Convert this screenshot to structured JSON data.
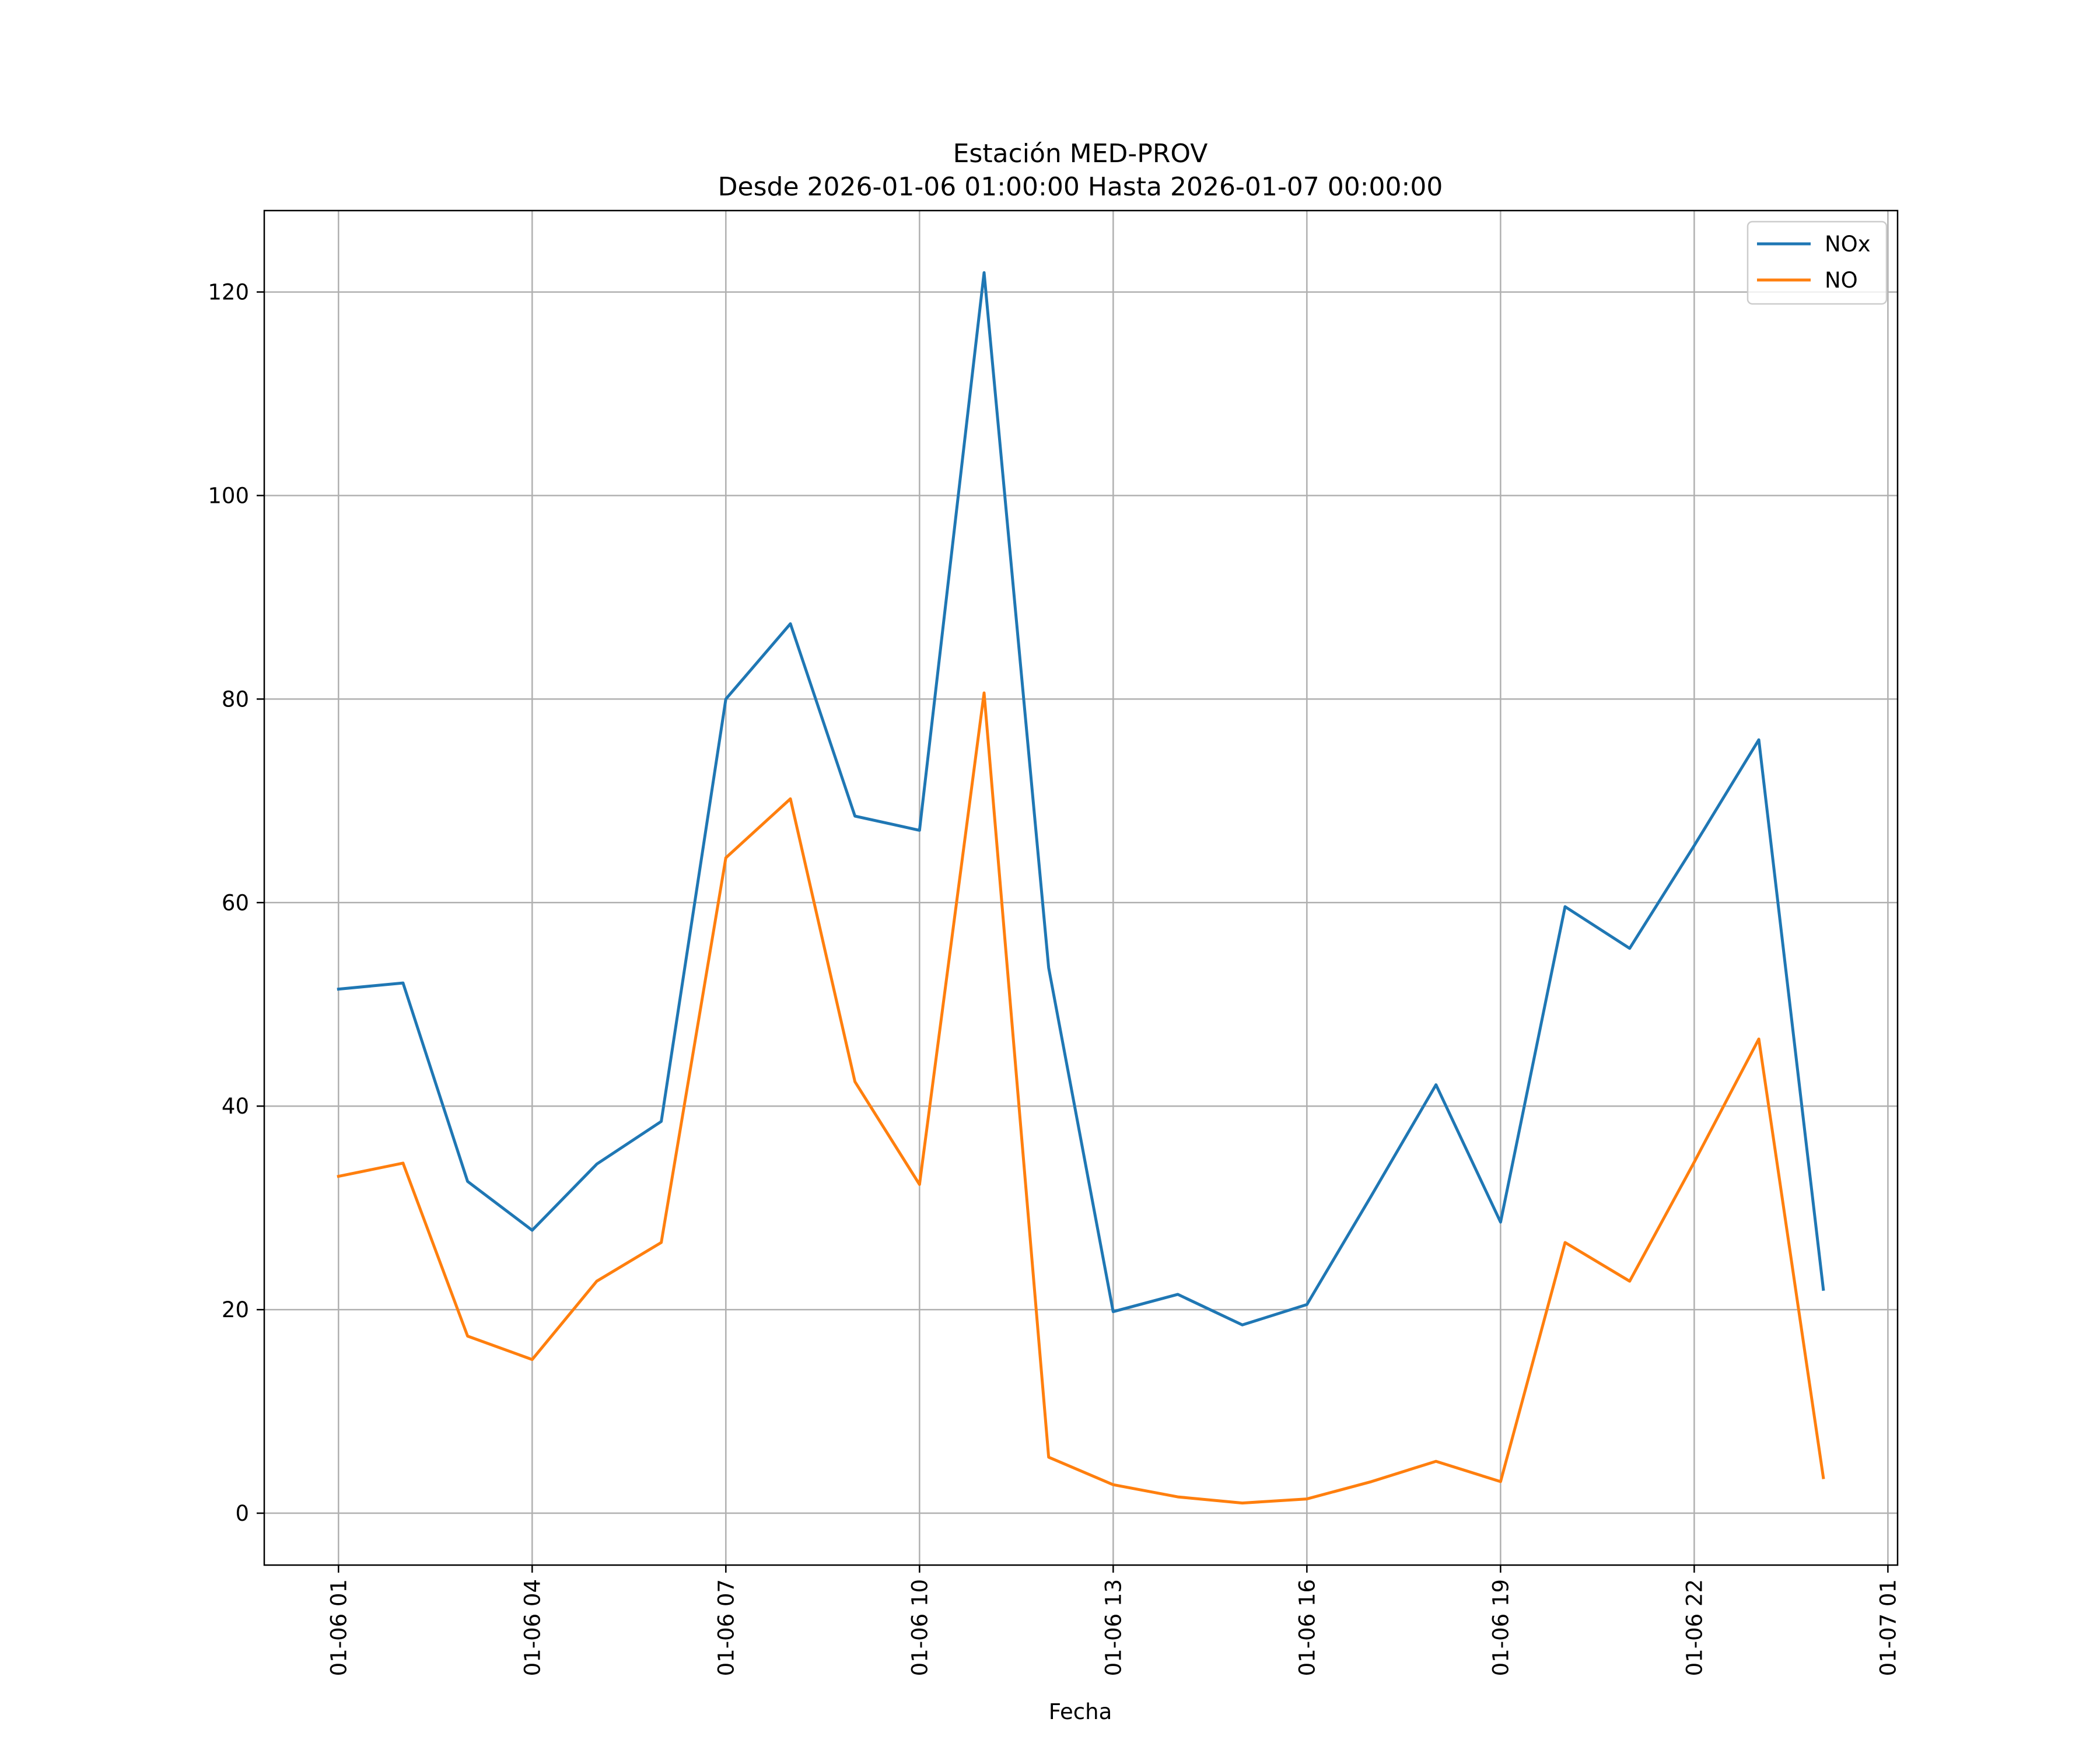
{
  "chart_data": {
    "type": "line",
    "title_line1": "Estación MED-PROV",
    "title_line2": "Desde 2026-01-06 01:00:00 Hasta 2026-01-07 00:00:00",
    "xlabel": "Fecha",
    "ylabel": "",
    "x_hours": [
      1,
      2,
      3,
      4,
      5,
      6,
      7,
      8,
      9,
      10,
      11,
      12,
      13,
      14,
      15,
      16,
      17,
      18,
      19,
      20,
      21,
      22,
      23,
      24
    ],
    "x_labels": [
      "2026-01-06 01:00",
      "2026-01-06 02:00",
      "2026-01-06 03:00",
      "2026-01-06 04:00",
      "2026-01-06 05:00",
      "2026-01-06 06:00",
      "2026-01-06 07:00",
      "2026-01-06 08:00",
      "2026-01-06 09:00",
      "2026-01-06 10:00",
      "2026-01-06 11:00",
      "2026-01-06 12:00",
      "2026-01-06 13:00",
      "2026-01-06 14:00",
      "2026-01-06 15:00",
      "2026-01-06 16:00",
      "2026-01-06 17:00",
      "2026-01-06 18:00",
      "2026-01-06 19:00",
      "2026-01-06 20:00",
      "2026-01-06 21:00",
      "2026-01-06 22:00",
      "2026-01-06 23:00",
      "2026-01-07 00:00"
    ],
    "series": [
      {
        "name": "NOx",
        "color": "#1f77b4",
        "values": [
          51.5,
          52.1,
          32.6,
          27.8,
          34.3,
          38.5,
          80.0,
          87.4,
          68.5,
          67.1,
          121.9,
          53.6,
          19.8,
          21.5,
          18.5,
          20.5,
          31.2,
          42.1,
          28.6,
          59.6,
          55.5,
          65.6,
          76.0,
          22.0
        ]
      },
      {
        "name": "NO",
        "color": "#ff7f0e",
        "values": [
          33.1,
          34.4,
          17.4,
          15.1,
          22.8,
          26.6,
          64.4,
          70.2,
          42.4,
          32.3,
          80.6,
          5.5,
          2.8,
          1.6,
          1.0,
          1.4,
          3.1,
          5.1,
          3.1,
          26.6,
          22.8,
          34.5,
          46.6,
          3.5
        ]
      }
    ],
    "x_ticks": [
      {
        "hour": 1,
        "label": "01-06 01"
      },
      {
        "hour": 4,
        "label": "01-06 04"
      },
      {
        "hour": 7,
        "label": "01-06 07"
      },
      {
        "hour": 10,
        "label": "01-06 10"
      },
      {
        "hour": 13,
        "label": "01-06 13"
      },
      {
        "hour": 16,
        "label": "01-06 16"
      },
      {
        "hour": 19,
        "label": "01-06 19"
      },
      {
        "hour": 22,
        "label": "01-06 22"
      },
      {
        "hour": 25,
        "label": "01-07 01"
      }
    ],
    "y_ticks": [
      0,
      20,
      40,
      60,
      80,
      100,
      120
    ],
    "xlim": [
      -0.15,
      25.15
    ],
    "ylim": [
      -5.1,
      128.0
    ],
    "grid": true,
    "legend_position": "top-right"
  }
}
